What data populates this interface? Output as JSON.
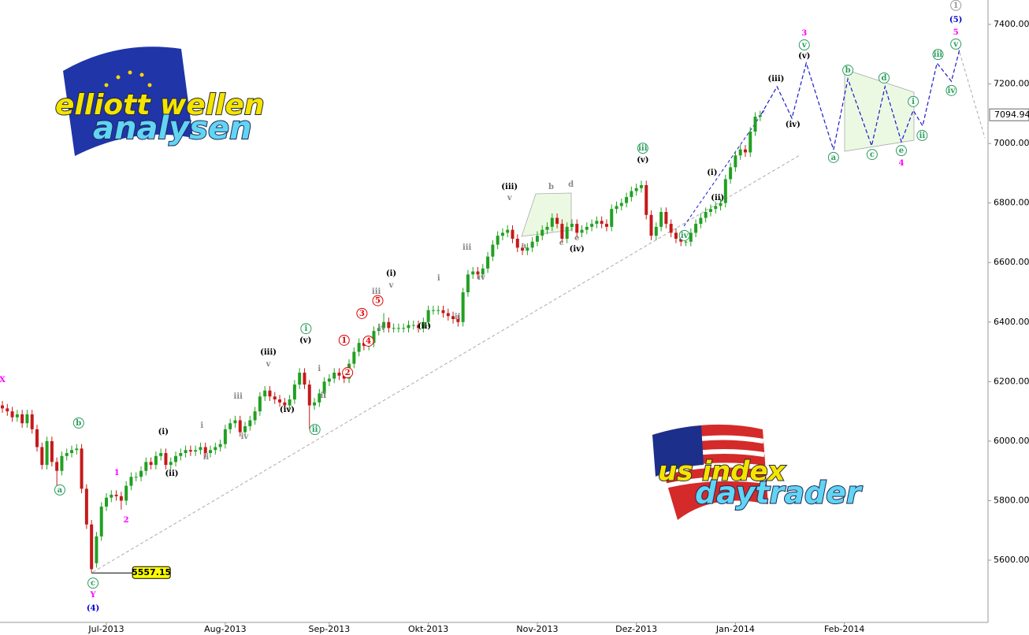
{
  "chart_data": {
    "type": "candlestick",
    "xlim": [
      0,
      199
    ],
    "ylim": [
      5391,
      7482
    ],
    "xticks": [
      {
        "value": 21,
        "label": "Jul-2013"
      },
      {
        "value": 45,
        "label": "Aug-2013"
      },
      {
        "value": 66,
        "label": "Sep-2013"
      },
      {
        "value": 86,
        "label": "Okt-2013"
      },
      {
        "value": 108,
        "label": "Nov-2013"
      },
      {
        "value": 128,
        "label": "Dez-2013"
      },
      {
        "value": 148,
        "label": "Jan-2014"
      },
      {
        "value": 170,
        "label": "Feb-2014"
      }
    ],
    "yticks": [
      {
        "value": 5600,
        "label": "5600.00"
      },
      {
        "value": 5800,
        "label": "5800.00"
      },
      {
        "value": 6000,
        "label": "6000.00"
      },
      {
        "value": 6200,
        "label": "6200.00"
      },
      {
        "value": 6400,
        "label": "6400.00"
      },
      {
        "value": 6600,
        "label": "6600.00"
      },
      {
        "value": 6800,
        "label": "6800.00"
      },
      {
        "value": 7000,
        "label": "7000.00"
      },
      {
        "value": 7200,
        "label": "7200.00"
      },
      {
        "value": 7400,
        "label": "7400.00"
      }
    ],
    "up_color": "#22a022",
    "down_color": "#c41a1a",
    "open": [
      6120,
      6110,
      6100,
      6080,
      6090,
      6060,
      6090,
      6040,
      5980,
      5920,
      6000,
      5930,
      5900,
      5950,
      5960,
      5970,
      5975,
      5840,
      5720,
      5590,
      5680,
      5780,
      5810,
      5820,
      5815,
      5800,
      5850,
      5880,
      5880,
      5900,
      5930,
      5920,
      5950,
      5960,
      5920,
      5930,
      5950,
      5960,
      5970,
      5965,
      5970,
      5980,
      5960,
      5970,
      5980,
      5990,
      6040,
      6060,
      6070,
      6030,
      6050,
      6070,
      6100,
      6150,
      6170,
      6150,
      6140,
      6130,
      6120,
      6140,
      6190,
      6230,
      6190,
      6120,
      6130,
      6160,
      6200,
      6210,
      6230,
      6220,
      6210,
      6260,
      6300,
      6330,
      6320,
      6330,
      6370,
      6380,
      6400,
      6380,
      6380,
      6380,
      6380,
      6390,
      6390,
      6380,
      6400,
      6440,
      6440,
      6440,
      6430,
      6420,
      6410,
      6400,
      6500,
      6560,
      6570,
      6560,
      6580,
      6620,
      6660,
      6690,
      6700,
      6710,
      6680,
      6650,
      6640,
      6650,
      6670,
      6690,
      6710,
      6720,
      6750,
      6730,
      6680,
      6720,
      6730,
      6700,
      6710,
      6720,
      6730,
      6740,
      6730,
      6720,
      6780,
      6790,
      6800,
      6820,
      6840,
      6850,
      6860,
      6760,
      6690,
      6720,
      6770,
      6730,
      6700,
      6680,
      6670,
      6670,
      6700,
      6730,
      6750,
      6770,
      6780,
      6790,
      6800,
      6880,
      6920,
      6960,
      6980,
      6970,
      7040,
      7090
    ],
    "high": [
      6135,
      6125,
      6115,
      6105,
      6105,
      6105,
      6105,
      6055,
      5995,
      6015,
      6015,
      5945,
      5965,
      5975,
      5985,
      5990,
      5990,
      5855,
      5735,
      5695,
      5795,
      5825,
      5835,
      5835,
      5830,
      5865,
      5895,
      5895,
      5915,
      5945,
      5945,
      5965,
      5975,
      5975,
      5945,
      5965,
      5975,
      5985,
      5985,
      5985,
      5995,
      5995,
      5985,
      5995,
      6005,
      6055,
      6075,
      6085,
      6085,
      6065,
      6085,
      6115,
      6165,
      6185,
      6185,
      6165,
      6155,
      6145,
      6155,
      6205,
      6245,
      6245,
      6205,
      6145,
      6175,
      6215,
      6225,
      6245,
      6245,
      6235,
      6275,
      6315,
      6345,
      6345,
      6345,
      6385,
      6395,
      6430,
      6415,
      6395,
      6395,
      6395,
      6405,
      6405,
      6405,
      6415,
      6455,
      6455,
      6455,
      6455,
      6445,
      6435,
      6425,
      6515,
      6575,
      6585,
      6585,
      6595,
      6635,
      6675,
      6705,
      6715,
      6725,
      6725,
      6695,
      6665,
      6665,
      6685,
      6705,
      6725,
      6735,
      6765,
      6765,
      6745,
      6735,
      6745,
      6745,
      6725,
      6735,
      6745,
      6755,
      6755,
      6745,
      6795,
      6805,
      6815,
      6835,
      6855,
      6865,
      6875,
      6875,
      6775,
      6735,
      6785,
      6785,
      6745,
      6715,
      6695,
      6685,
      6715,
      6745,
      6765,
      6785,
      6795,
      6805,
      6815,
      6895,
      6935,
      6975,
      6995,
      6995,
      7055,
      7105,
      7110
    ],
    "low": [
      6095,
      6085,
      6065,
      6065,
      6045,
      6045,
      6025,
      5965,
      5905,
      5905,
      5915,
      5830,
      5885,
      5935,
      5945,
      5955,
      5825,
      5705,
      5557.15,
      5575,
      5665,
      5765,
      5795,
      5800,
      5770,
      5785,
      5835,
      5865,
      5865,
      5885,
      5905,
      5905,
      5935,
      5905,
      5905,
      5915,
      5935,
      5945,
      5950,
      5950,
      5955,
      5945,
      5945,
      5955,
      5965,
      5975,
      6025,
      6045,
      6015,
      6015,
      6035,
      6055,
      6085,
      6135,
      6135,
      6125,
      6115,
      6105,
      6105,
      6125,
      6175,
      6175,
      6040,
      6105,
      6115,
      6145,
      6185,
      6195,
      6205,
      6195,
      6195,
      6245,
      6285,
      6305,
      6305,
      6315,
      6355,
      6365,
      6365,
      6365,
      6365,
      6365,
      6365,
      6375,
      6365,
      6365,
      6385,
      6425,
      6425,
      6415,
      6405,
      6395,
      6385,
      6385,
      6485,
      6545,
      6545,
      6545,
      6565,
      6605,
      6645,
      6675,
      6685,
      6665,
      6635,
      6625,
      6625,
      6635,
      6655,
      6675,
      6695,
      6705,
      6715,
      6665,
      6665,
      6705,
      6685,
      6685,
      6695,
      6705,
      6715,
      6715,
      6705,
      6705,
      6765,
      6775,
      6785,
      6805,
      6825,
      6835,
      6745,
      6675,
      6675,
      6705,
      6715,
      6685,
      6665,
      6655,
      6655,
      6655,
      6685,
      6715,
      6735,
      6755,
      6765,
      6775,
      6785,
      6865,
      6905,
      6945,
      6955,
      6955,
      7025,
      7075
    ],
    "close": [
      6110,
      6100,
      6080,
      6090,
      6060,
      6090,
      6040,
      5980,
      5920,
      6000,
      5930,
      5900,
      5950,
      5960,
      5970,
      5975,
      5840,
      5720,
      5570,
      5680,
      5780,
      5810,
      5820,
      5815,
      5800,
      5850,
      5880,
      5880,
      5900,
      5930,
      5920,
      5950,
      5960,
      5920,
      5930,
      5950,
      5960,
      5970,
      5965,
      5970,
      5980,
      5960,
      5970,
      5980,
      5990,
      6040,
      6060,
      6070,
      6030,
      6050,
      6070,
      6100,
      6150,
      6170,
      6150,
      6140,
      6130,
      6120,
      6140,
      6190,
      6230,
      6190,
      6120,
      6130,
      6160,
      6200,
      6210,
      6230,
      6220,
      6210,
      6260,
      6300,
      6330,
      6320,
      6330,
      6370,
      6380,
      6400,
      6380,
      6380,
      6380,
      6380,
      6390,
      6390,
      6380,
      6400,
      6440,
      6440,
      6440,
      6430,
      6420,
      6410,
      6400,
      6500,
      6560,
      6570,
      6560,
      6580,
      6620,
      6660,
      6690,
      6700,
      6710,
      6680,
      6650,
      6640,
      6650,
      6670,
      6690,
      6710,
      6720,
      6750,
      6730,
      6680,
      6720,
      6730,
      6700,
      6710,
      6720,
      6730,
      6740,
      6730,
      6720,
      6780,
      6790,
      6800,
      6820,
      6840,
      6850,
      6860,
      6760,
      6690,
      6720,
      6770,
      6730,
      6700,
      6680,
      6670,
      6670,
      6700,
      6730,
      6750,
      6770,
      6780,
      6790,
      6800,
      6880,
      6920,
      6960,
      6980,
      6970,
      7040,
      7090,
      7094.94
    ],
    "projection": {
      "color": "#1a1acc",
      "x": [
        153.2,
        156.4,
        159.4,
        162.3,
        167.8,
        170.7,
        175.5,
        178.2,
        181.5,
        183.9,
        185.8,
        188.7,
        191.6,
        193.3
      ],
      "y": [
        7098,
        7191,
        7085,
        7270,
        6979,
        7217,
        6992,
        7191,
        7006,
        7111,
        7059,
        7270,
        7209,
        7318
      ]
    },
    "annotations": [
      {
        "text": "X",
        "x": 0,
        "y": 6206,
        "color": "#ff00ff",
        "circled": false
      },
      {
        "text": "b",
        "x": 15.4,
        "y": 6061,
        "color": "#2a9d5c",
        "circled": true
      },
      {
        "text": "a",
        "x": 11.6,
        "y": 5836,
        "color": "#2a9d5c",
        "circled": true
      },
      {
        "text": "c",
        "x": 18.3,
        "y": 5523,
        "color": "#2a9d5c",
        "circled": true
      },
      {
        "text": "Y",
        "x": 18.3,
        "y": 5484,
        "color": "#ff00ff",
        "circled": false
      },
      {
        "text": "(4)",
        "x": 18.3,
        "y": 5439,
        "color": "#0000cc",
        "circled": false
      },
      {
        "text": "1",
        "x": 23.1,
        "y": 5894,
        "color": "#ff00ff",
        "circled": false
      },
      {
        "text": "2",
        "x": 25,
        "y": 5735,
        "color": "#ff00ff",
        "circled": false
      },
      {
        "text": "(i)",
        "x": 32.5,
        "y": 6032,
        "color": "#000000",
        "circled": false
      },
      {
        "text": "(ii)",
        "x": 34.2,
        "y": 5891,
        "color": "#000000",
        "circled": false
      },
      {
        "text": "i",
        "x": 40.3,
        "y": 6053,
        "color": "#888888",
        "circled": false
      },
      {
        "text": "ii",
        "x": 41.1,
        "y": 5947,
        "color": "#888888",
        "circled": false
      },
      {
        "text": "iii",
        "x": 47.6,
        "y": 6151,
        "color": "#888888",
        "circled": false
      },
      {
        "text": "iv",
        "x": 48.9,
        "y": 6016,
        "color": "#888888",
        "circled": false
      },
      {
        "text": "(iii)",
        "x": 53.7,
        "y": 6299,
        "color": "#000000",
        "circled": false
      },
      {
        "text": "v",
        "x": 53.7,
        "y": 6259,
        "color": "#888888",
        "circled": false
      },
      {
        "text": "(iv)",
        "x": 57.5,
        "y": 6106,
        "color": "#000000",
        "circled": false
      },
      {
        "text": "(v)",
        "x": 61.2,
        "y": 6339,
        "color": "#000000",
        "circled": false
      },
      {
        "text": "i",
        "x": 61.3,
        "y": 6378,
        "color": "#2a9d5c",
        "circled": true
      },
      {
        "text": "ii",
        "x": 63.1,
        "y": 6039,
        "color": "#2a9d5c",
        "circled": true
      },
      {
        "text": "i",
        "x": 64,
        "y": 6243,
        "color": "#888888",
        "circled": false
      },
      {
        "text": "ii",
        "x": 64.8,
        "y": 6153,
        "color": "#888888",
        "circled": false
      },
      {
        "text": "1",
        "x": 69,
        "y": 6339,
        "color": "#e00000",
        "circled": true
      },
      {
        "text": "2",
        "x": 69.7,
        "y": 6230,
        "color": "#e00000",
        "circled": true
      },
      {
        "text": "3",
        "x": 72.6,
        "y": 6429,
        "color": "#e00000",
        "circled": true
      },
      {
        "text": "4",
        "x": 73.9,
        "y": 6336,
        "color": "#e00000",
        "circled": true
      },
      {
        "text": "5",
        "x": 75.8,
        "y": 6472,
        "color": "#e00000",
        "circled": true
      },
      {
        "text": "iii",
        "x": 75.5,
        "y": 6503,
        "color": "#888888",
        "circled": false
      },
      {
        "text": "iv",
        "x": 76.6,
        "y": 6381,
        "color": "#888888",
        "circled": false
      },
      {
        "text": "(i)",
        "x": 78.5,
        "y": 6564,
        "color": "#000000",
        "circled": false
      },
      {
        "text": "v",
        "x": 78.5,
        "y": 6524,
        "color": "#888888",
        "circled": false
      },
      {
        "text": "(ii)",
        "x": 85.2,
        "y": 6386,
        "color": "#000000",
        "circled": false
      },
      {
        "text": "i",
        "x": 88.1,
        "y": 6548,
        "color": "#888888",
        "circled": false
      },
      {
        "text": "ii",
        "x": 91.9,
        "y": 6418,
        "color": "#888888",
        "circled": false
      },
      {
        "text": "iii",
        "x": 93.8,
        "y": 6651,
        "color": "#888888",
        "circled": false
      },
      {
        "text": "iv",
        "x": 96.7,
        "y": 6550,
        "color": "#888888",
        "circled": false
      },
      {
        "text": "(iii)",
        "x": 102.4,
        "y": 6855,
        "color": "#000000",
        "circled": false
      },
      {
        "text": "v",
        "x": 102.4,
        "y": 6818,
        "color": "#888888",
        "circled": false
      },
      {
        "text": "a",
        "x": 105.3,
        "y": 6656,
        "color": "#888888",
        "circled": false
      },
      {
        "text": "b",
        "x": 110.8,
        "y": 6855,
        "color": "#888888",
        "circled": false
      },
      {
        "text": "c",
        "x": 112.9,
        "y": 6667,
        "color": "#888888",
        "circled": false
      },
      {
        "text": "d",
        "x": 114.8,
        "y": 6863,
        "color": "#888888",
        "circled": false
      },
      {
        "text": "e",
        "x": 116,
        "y": 6683,
        "color": "#888888",
        "circled": false
      },
      {
        "text": "(iv)",
        "x": 116,
        "y": 6646,
        "color": "#000000",
        "circled": false
      },
      {
        "text": "iii",
        "x": 129.3,
        "y": 6984,
        "color": "#2a9d5c",
        "circled": true
      },
      {
        "text": "(v)",
        "x": 129.3,
        "y": 6945,
        "color": "#000000",
        "circled": false
      },
      {
        "text": "iv",
        "x": 137.7,
        "y": 6691,
        "color": "#2a9d5c",
        "circled": true
      },
      {
        "text": "(i)",
        "x": 143.3,
        "y": 6902,
        "color": "#000000",
        "circled": false
      },
      {
        "text": "(ii)",
        "x": 144.4,
        "y": 6818,
        "color": "#000000",
        "circled": false
      },
      {
        "text": "(iii)",
        "x": 156.2,
        "y": 7217,
        "color": "#000000",
        "circled": false
      },
      {
        "text": "(iv)",
        "x": 159.6,
        "y": 7064,
        "color": "#000000",
        "circled": false
      },
      {
        "text": "(v)",
        "x": 161.9,
        "y": 7294,
        "color": "#000000",
        "circled": false
      },
      {
        "text": "v",
        "x": 161.9,
        "y": 7331,
        "color": "#2a9d5c",
        "circled": true
      },
      {
        "text": "3",
        "x": 161.9,
        "y": 7371,
        "color": "#ff00ff",
        "circled": false
      },
      {
        "text": "a",
        "x": 167.8,
        "y": 6953,
        "color": "#2a9d5c",
        "circled": true
      },
      {
        "text": "b",
        "x": 170.7,
        "y": 7246,
        "color": "#2a9d5c",
        "circled": true
      },
      {
        "text": "c",
        "x": 175.6,
        "y": 6963,
        "color": "#2a9d5c",
        "circled": true
      },
      {
        "text": "d",
        "x": 178,
        "y": 7220,
        "color": "#2a9d5c",
        "circled": true
      },
      {
        "text": "e",
        "x": 181.5,
        "y": 6976,
        "color": "#2a9d5c",
        "circled": true
      },
      {
        "text": "4",
        "x": 181.5,
        "y": 6934,
        "color": "#ff00ff",
        "circled": false
      },
      {
        "text": "i",
        "x": 183.9,
        "y": 7141,
        "color": "#2a9d5c",
        "circled": true
      },
      {
        "text": "ii",
        "x": 185.7,
        "y": 7027,
        "color": "#2a9d5c",
        "circled": true
      },
      {
        "text": "iii",
        "x": 188.9,
        "y": 7299,
        "color": "#2a9d5c",
        "circled": true
      },
      {
        "text": "iv",
        "x": 191.6,
        "y": 7178,
        "color": "#2a9d5c",
        "circled": true
      },
      {
        "text": "v",
        "x": 192.5,
        "y": 7334,
        "color": "#2a9d5c",
        "circled": true
      },
      {
        "text": "5",
        "x": 192.5,
        "y": 7374,
        "color": "#ff00ff",
        "circled": false
      },
      {
        "text": "(5)",
        "x": 192.5,
        "y": 7416,
        "color": "#0000cc",
        "circled": false
      },
      {
        "text": "1",
        "x": 192.5,
        "y": 7464,
        "color": "#999999",
        "circled": true
      }
    ]
  },
  "logos": {
    "top": [
      "elliott wellen",
      "analysen"
    ],
    "bottom": [
      "us index",
      "daytrader"
    ]
  }
}
